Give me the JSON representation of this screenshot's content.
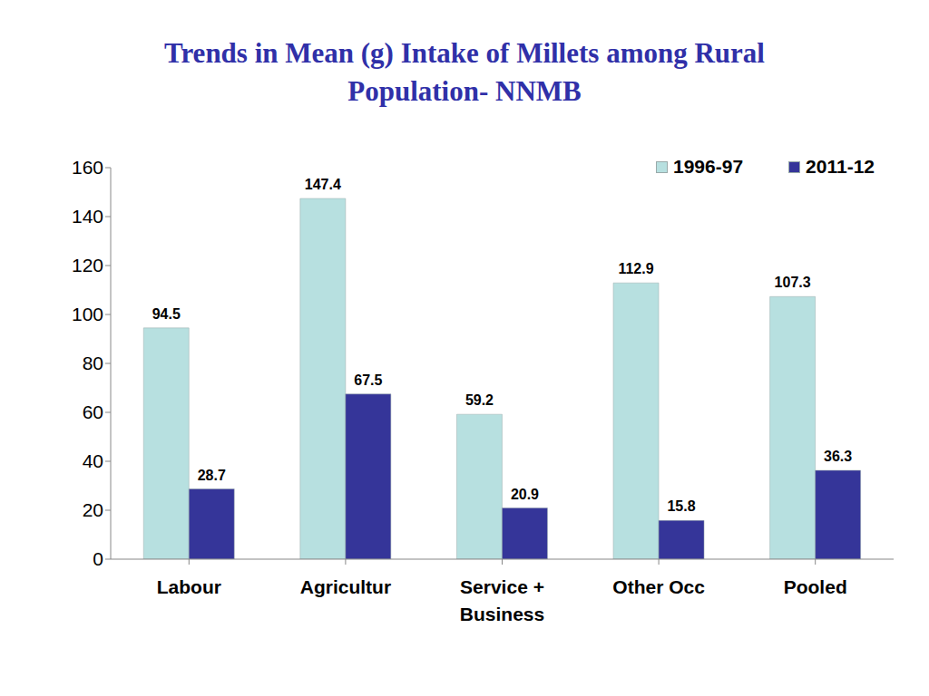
{
  "chart_data": {
    "type": "bar",
    "title": "Trends in Mean (g) Intake of Millets among Rural Population- NNMB",
    "categories": [
      "Labour",
      "Agricultur",
      "Service + Business",
      "Other Occ",
      "Pooled"
    ],
    "series": [
      {
        "name": "1996-97",
        "color": "#b7e0e0",
        "values": [
          94.5,
          147.4,
          59.2,
          112.9,
          107.3
        ]
      },
      {
        "name": "2011-12",
        "color": "#353599",
        "values": [
          28.7,
          67.5,
          20.9,
          15.8,
          36.3
        ]
      }
    ],
    "ylim": [
      0,
      160
    ],
    "yticks": [
      0,
      20,
      40,
      60,
      80,
      100,
      120,
      140,
      160
    ],
    "grid": false,
    "legend": "upper right",
    "data_labels": true
  }
}
